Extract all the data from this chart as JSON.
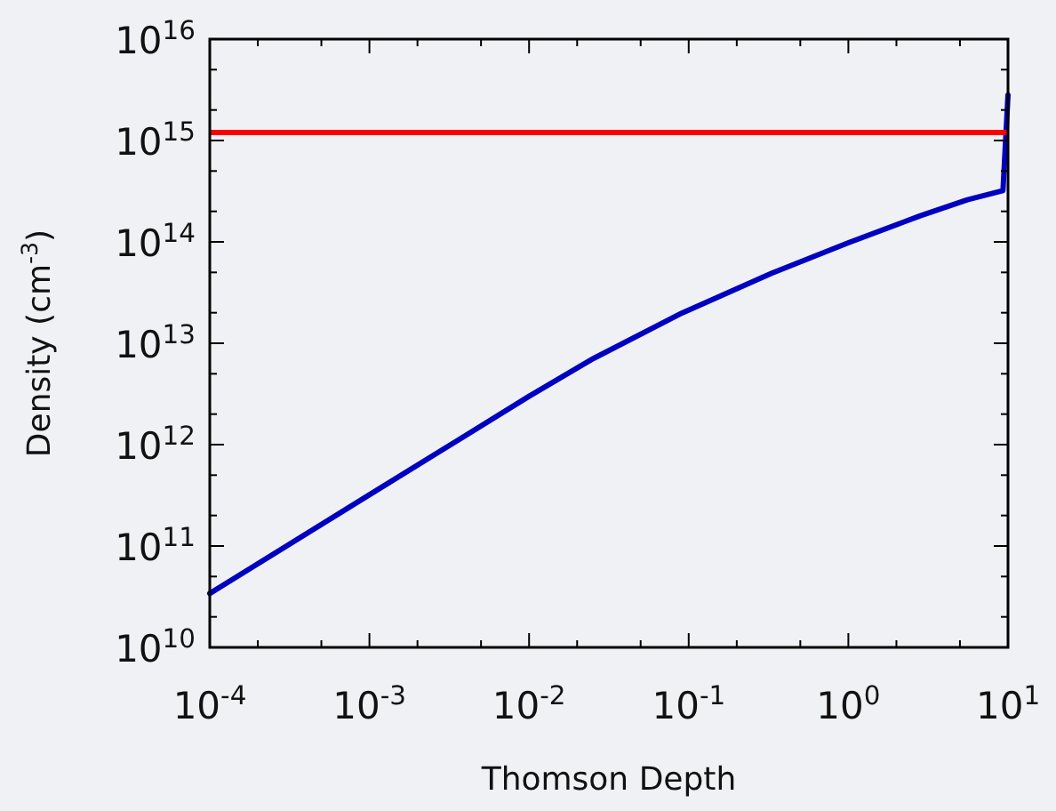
{
  "chart_data": {
    "type": "line",
    "xlabel": "Thomson Depth",
    "ylabel": "Density (cm$^{-3}$)",
    "log": "xy",
    "grid": false,
    "marker": "none",
    "line_style": "solid",
    "xlim": [
      0.0001,
      10
    ],
    "ylim": [
      10000000000.0,
      1e+16
    ],
    "xticks": [
      {
        "value": 0.0001,
        "label": "10$^{-4}$"
      },
      {
        "value": 0.0002,
        "label": null
      },
      {
        "value": 0.0005,
        "label": null
      },
      {
        "value": 0.001,
        "label": "10$^{-3}$"
      },
      {
        "value": 0.002,
        "label": null
      },
      {
        "value": 0.005,
        "label": null
      },
      {
        "value": 0.01,
        "label": "10$^{-2}$"
      },
      {
        "value": 0.02,
        "label": null
      },
      {
        "value": 0.05,
        "label": null
      },
      {
        "value": 0.1,
        "label": "10$^{-1}$"
      },
      {
        "value": 0.2,
        "label": null
      },
      {
        "value": 0.5,
        "label": null
      },
      {
        "value": 1,
        "label": "10$^{0}$"
      },
      {
        "value": 2,
        "label": null
      },
      {
        "value": 5,
        "label": null
      },
      {
        "value": 10,
        "label": "10$^{1}$"
      }
    ],
    "yticks": [
      {
        "value": 10000000000.0,
        "label": "10$^{10}$"
      },
      {
        "value": 20000000000.0,
        "label": null
      },
      {
        "value": 50000000000.0,
        "label": null
      },
      {
        "value": 100000000000.0,
        "label": "10$^{11}$"
      },
      {
        "value": 200000000000.0,
        "label": null
      },
      {
        "value": 500000000000.0,
        "label": null
      },
      {
        "value": 1000000000000.0,
        "label": "10$^{12}$"
      },
      {
        "value": 2000000000000.0,
        "label": null
      },
      {
        "value": 5000000000000.0,
        "label": null
      },
      {
        "value": 10000000000000.0,
        "label": "10$^{13}$"
      },
      {
        "value": 20000000000000.0,
        "label": null
      },
      {
        "value": 50000000000000.0,
        "label": null
      },
      {
        "value": 100000000000000.0,
        "label": "10$^{14}$"
      },
      {
        "value": 200000000000000.0,
        "label": null
      },
      {
        "value": 500000000000000.0,
        "label": null
      },
      {
        "value": 1000000000000000.0,
        "label": "10$^{15}$"
      },
      {
        "value": 2000000000000000.0,
        "label": null
      },
      {
        "value": 5000000000000000.0,
        "label": null
      },
      {
        "value": 1e+16,
        "label": "10$^{16}$"
      }
    ],
    "x": [
      0.0001,
      0.001,
      0.01,
      0.0254,
      0.0916,
      0.331,
      1,
      2.8,
      5.57,
      9.3,
      10
    ],
    "series": [
      {
        "color": "#0000c0",
        "values": [
          34000000000.0,
          320000000000.0,
          3000000000000.0,
          7100000000000.0,
          20000000000000.0,
          49000000000000.0,
          98000000000000.0,
          180000000000000.0,
          260000000000000.0,
          320000000000000.0,
          2800000000000000.0
        ]
      }
    ],
    "ref_lines": [
      {
        "axis": "y",
        "value": 1200000000000000.0,
        "color": "#ff0000",
        "line_style": "solid"
      }
    ]
  }
}
